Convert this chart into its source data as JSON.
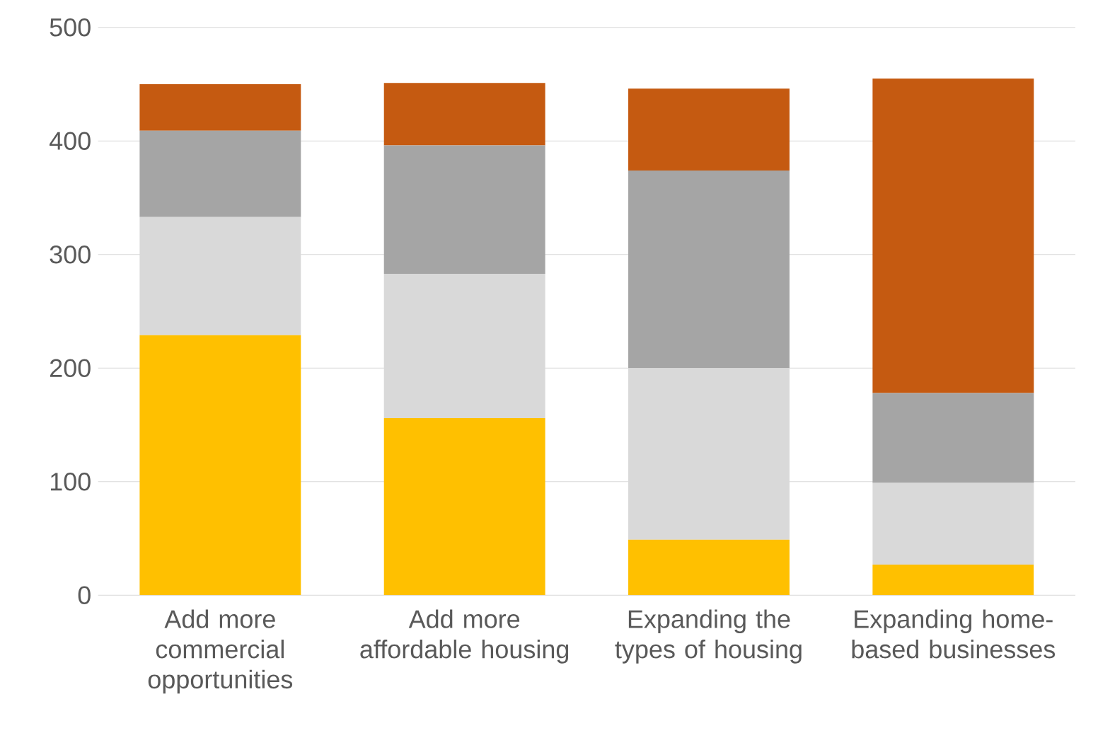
{
  "chart_data": {
    "type": "bar",
    "stacked": true,
    "grid": "y",
    "categories": [
      "Add more commercial opportunities",
      "Add more affordable housing",
      "Expanding the types of housing",
      "Expanding home-based businesses"
    ],
    "series": [
      {
        "color": "#ffc000",
        "values": [
          229,
          156,
          49,
          27
        ]
      },
      {
        "color": "#d9d9d9",
        "values": [
          104,
          127,
          151,
          72
        ]
      },
      {
        "color": "#a5a5a5",
        "values": [
          76,
          113,
          174,
          79
        ]
      },
      {
        "color": "#c55a11",
        "values": [
          41,
          55,
          72,
          277
        ]
      }
    ],
    "ylim": [
      0,
      500
    ],
    "yticks": [
      0,
      100,
      200,
      300,
      400,
      500
    ]
  }
}
